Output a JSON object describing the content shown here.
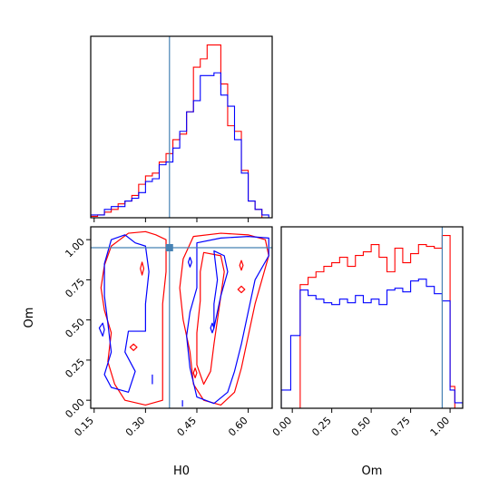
{
  "chart_data": [
    {
      "panel": "H0 marginal",
      "type": "histogram",
      "xlim": [
        0.14,
        0.67
      ],
      "x_ticks": [
        "0.15",
        "0.30",
        "0.45",
        "0.60"
      ],
      "bin_edges": [
        0.14,
        0.16,
        0.18,
        0.2,
        0.22,
        0.24,
        0.26,
        0.28,
        0.3,
        0.32,
        0.34,
        0.36,
        0.38,
        0.4,
        0.42,
        0.44,
        0.46,
        0.48,
        0.5,
        0.52,
        0.54,
        0.56,
        0.58,
        0.6,
        0.62,
        0.64,
        0.66
      ],
      "series": [
        {
          "color": "#ff0000",
          "values": [
            0.5,
            1,
            2,
            3,
            5,
            6,
            8,
            12,
            15,
            16,
            20,
            23,
            28,
            30,
            38,
            54,
            57,
            62,
            62,
            48,
            33,
            31,
            17,
            6,
            3,
            0
          ]
        },
        {
          "color": "#0000ff",
          "values": [
            1,
            1,
            3,
            4,
            4,
            6,
            7,
            9,
            13,
            14,
            19,
            20,
            25,
            31,
            38,
            42,
            51,
            51,
            52,
            44,
            40,
            28,
            16,
            6,
            3,
            1
          ]
        }
      ],
      "reference_line": {
        "x": 0.37,
        "color": "#4682b4"
      }
    },
    {
      "panel": "H0 vs Om joint",
      "type": "contour",
      "xlabel": "H0",
      "ylabel": "Om",
      "xlim": [
        0.14,
        0.67
      ],
      "ylim": [
        -0.05,
        1.08
      ],
      "x_ticks": [
        "0.15",
        "0.30",
        "0.45",
        "0.60"
      ],
      "y_ticks": [
        "0.00",
        "0.25",
        "0.50",
        "0.75",
        "1.00"
      ],
      "reference_point": {
        "x": 0.37,
        "y": 0.95,
        "color": "#4682b4"
      },
      "series": [
        {
          "color": "#ff0000",
          "contours": [
            [
              [
                0.25,
                1.04
              ],
              [
                0.3,
                1.05
              ],
              [
                0.33,
                1.03
              ],
              [
                0.36,
                1.0
              ],
              [
                0.36,
                0.8
              ],
              [
                0.35,
                0.6
              ],
              [
                0.35,
                0.4
              ],
              [
                0.35,
                0.2
              ],
              [
                0.35,
                0.0
              ],
              [
                0.3,
                -0.03
              ],
              [
                0.24,
                0.0
              ],
              [
                0.21,
                0.1
              ],
              [
                0.19,
                0.24
              ],
              [
                0.2,
                0.42
              ],
              [
                0.18,
                0.56
              ],
              [
                0.17,
                0.7
              ],
              [
                0.18,
                0.84
              ],
              [
                0.2,
                0.96
              ],
              [
                0.25,
                1.04
              ]
            ],
            [
              [
                0.44,
                1.02
              ],
              [
                0.52,
                1.04
              ],
              [
                0.6,
                1.03
              ],
              [
                0.65,
                1.0
              ],
              [
                0.66,
                0.9
              ],
              [
                0.64,
                0.75
              ],
              [
                0.62,
                0.6
              ],
              [
                0.6,
                0.4
              ],
              [
                0.58,
                0.2
              ],
              [
                0.56,
                0.05
              ],
              [
                0.52,
                -0.03
              ],
              [
                0.47,
                0.0
              ],
              [
                0.44,
                0.1
              ],
              [
                0.43,
                0.3
              ],
              [
                0.41,
                0.5
              ],
              [
                0.4,
                0.7
              ],
              [
                0.41,
                0.88
              ],
              [
                0.44,
                1.02
              ]
            ],
            [
              [
                0.47,
                0.92
              ],
              [
                0.52,
                0.9
              ],
              [
                0.53,
                0.8
              ],
              [
                0.52,
                0.65
              ],
              [
                0.51,
                0.5
              ],
              [
                0.5,
                0.35
              ],
              [
                0.49,
                0.18
              ],
              [
                0.47,
                0.1
              ],
              [
                0.45,
                0.22
              ],
              [
                0.45,
                0.42
              ],
              [
                0.46,
                0.62
              ],
              [
                0.46,
                0.8
              ],
              [
                0.47,
                0.92
              ]
            ],
            [
              [
                0.285,
                0.82
              ],
              [
                0.29,
                0.86
              ],
              [
                0.295,
                0.82
              ],
              [
                0.29,
                0.78
              ],
              [
                0.285,
                0.82
              ]
            ],
            [
              [
                0.575,
                0.84
              ],
              [
                0.58,
                0.87
              ],
              [
                0.585,
                0.84
              ],
              [
                0.58,
                0.81
              ],
              [
                0.575,
                0.84
              ]
            ],
            [
              [
                0.57,
                0.69
              ],
              [
                0.58,
                0.71
              ],
              [
                0.59,
                0.69
              ],
              [
                0.58,
                0.67
              ],
              [
                0.57,
                0.69
              ]
            ],
            [
              [
                0.255,
                0.33
              ],
              [
                0.265,
                0.35
              ],
              [
                0.275,
                0.33
              ],
              [
                0.265,
                0.31
              ],
              [
                0.255,
                0.33
              ]
            ],
            [
              [
                0.44,
                0.17
              ],
              [
                0.445,
                0.2
              ],
              [
                0.45,
                0.17
              ],
              [
                0.445,
                0.14
              ],
              [
                0.44,
                0.17
              ]
            ]
          ]
        },
        {
          "color": "#0000ff",
          "contours": [
            [
              [
                0.2,
                1.0
              ],
              [
                0.24,
                1.03
              ],
              [
                0.27,
                0.98
              ],
              [
                0.3,
                0.96
              ],
              [
                0.31,
                0.8
              ],
              [
                0.3,
                0.6
              ],
              [
                0.3,
                0.43
              ],
              [
                0.25,
                0.43
              ],
              [
                0.24,
                0.3
              ],
              [
                0.27,
                0.18
              ],
              [
                0.25,
                0.05
              ],
              [
                0.2,
                0.08
              ],
              [
                0.18,
                0.16
              ],
              [
                0.2,
                0.3
              ],
              [
                0.19,
                0.48
              ],
              [
                0.18,
                0.65
              ],
              [
                0.18,
                0.85
              ],
              [
                0.2,
                1.0
              ]
            ],
            [
              [
                0.45,
                0.98
              ],
              [
                0.52,
                1.01
              ],
              [
                0.6,
                1.02
              ],
              [
                0.66,
                1.01
              ],
              [
                0.66,
                0.9
              ],
              [
                0.62,
                0.75
              ],
              [
                0.6,
                0.55
              ],
              [
                0.58,
                0.35
              ],
              [
                0.56,
                0.18
              ],
              [
                0.54,
                0.05
              ],
              [
                0.5,
                -0.02
              ],
              [
                0.45,
                0.02
              ],
              [
                0.43,
                0.2
              ],
              [
                0.42,
                0.4
              ],
              [
                0.43,
                0.55
              ],
              [
                0.45,
                0.7
              ],
              [
                0.45,
                0.85
              ],
              [
                0.45,
                0.98
              ]
            ],
            [
              [
                0.5,
                0.93
              ],
              [
                0.53,
                0.9
              ],
              [
                0.54,
                0.8
              ],
              [
                0.52,
                0.65
              ],
              [
                0.51,
                0.55
              ],
              [
                0.5,
                0.45
              ],
              [
                0.5,
                0.6
              ],
              [
                0.51,
                0.75
              ],
              [
                0.5,
                0.93
              ]
            ],
            [
              [
                0.165,
                0.45
              ],
              [
                0.175,
                0.48
              ],
              [
                0.18,
                0.44
              ],
              [
                0.175,
                0.4
              ],
              [
                0.165,
                0.45
              ]
            ],
            [
              [
                0.425,
                0.86
              ],
              [
                0.43,
                0.89
              ],
              [
                0.435,
                0.86
              ],
              [
                0.43,
                0.83
              ],
              [
                0.425,
                0.86
              ]
            ],
            [
              [
                0.49,
                0.45
              ],
              [
                0.495,
                0.48
              ],
              [
                0.5,
                0.45
              ],
              [
                0.495,
                0.42
              ],
              [
                0.49,
                0.45
              ]
            ]
          ]
        }
      ],
      "short_segments": [
        {
          "color": "#0000ff",
          "points": [
            [
              0.32,
              0.16
            ],
            [
              0.32,
              0.1
            ]
          ]
        },
        {
          "color": "#0000ff",
          "points": [
            [
              0.408,
              0.0
            ],
            [
              0.408,
              -0.04
            ]
          ]
        }
      ]
    },
    {
      "panel": "Om marginal",
      "type": "histogram",
      "xlabel": "Om",
      "xlim": [
        -0.07,
        1.08
      ],
      "x_ticks": [
        "0.00",
        "0.25",
        "0.50",
        "0.75",
        "1.00"
      ],
      "bin_edges": [
        -0.07,
        -0.01,
        0.05,
        0.1,
        0.15,
        0.2,
        0.25,
        0.3,
        0.35,
        0.4,
        0.45,
        0.5,
        0.55,
        0.6,
        0.65,
        0.7,
        0.75,
        0.8,
        0.85,
        0.9,
        0.95,
        1.0,
        1.03,
        1.08
      ],
      "series": [
        {
          "color": "#ff0000",
          "values": [
            0,
            0,
            68,
            72,
            75,
            78,
            80,
            83,
            78,
            84,
            86,
            90,
            83,
            75,
            88,
            80,
            85,
            90,
            89,
            88,
            95,
            12,
            0
          ]
        },
        {
          "color": "#0000ff",
          "values": [
            10,
            40,
            65,
            62,
            60,
            58,
            57,
            60,
            58,
            62,
            58,
            60,
            57,
            65,
            66,
            64,
            70,
            71,
            67,
            63,
            59,
            10,
            3
          ]
        }
      ],
      "reference_line": {
        "x": 0.95,
        "color": "#4682b4"
      }
    }
  ]
}
